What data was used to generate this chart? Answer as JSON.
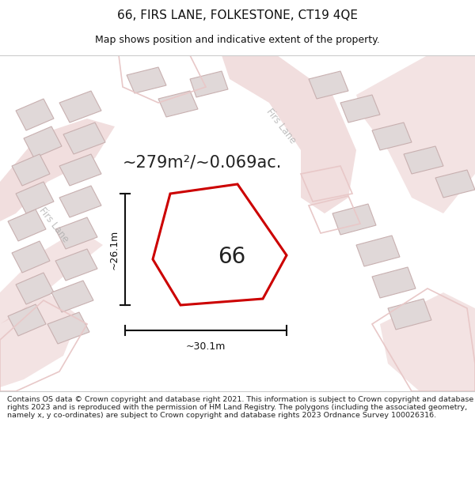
{
  "title": "66, FIRS LANE, FOLKESTONE, CT19 4QE",
  "subtitle": "Map shows position and indicative extent of the property.",
  "area_text": "~279m²/~0.069ac.",
  "dim_width": "~30.1m",
  "dim_height": "~26.1m",
  "label_66": "66",
  "firs_lane_label_tr": "Firs Lane",
  "firs_lane_label_l": "Firs Lane",
  "copyright_text": "Contains OS data © Crown copyright and database right 2021. This information is subject to Crown copyright and database rights 2023 and is reproduced with the permission of HM Land Registry. The polygons (including the associated geometry, namely x, y co-ordinates) are subject to Crown copyright and database rights 2023 Ordnance Survey 100026316.",
  "map_bg": "#f7f3f3",
  "road_color": "#e8c8c8",
  "building_fill": "#e0d8d8",
  "building_edge": "#c8b0b0",
  "highlight_fill": "#ffffff",
  "highlight_edge": "#cc0000",
  "dim_color": "#111111",
  "text_color": "#222222",
  "road_label_color": "#aaaaaa",
  "title_color": "#111111",
  "copyright_color": "#222222",
  "sep_color": "#cccccc"
}
